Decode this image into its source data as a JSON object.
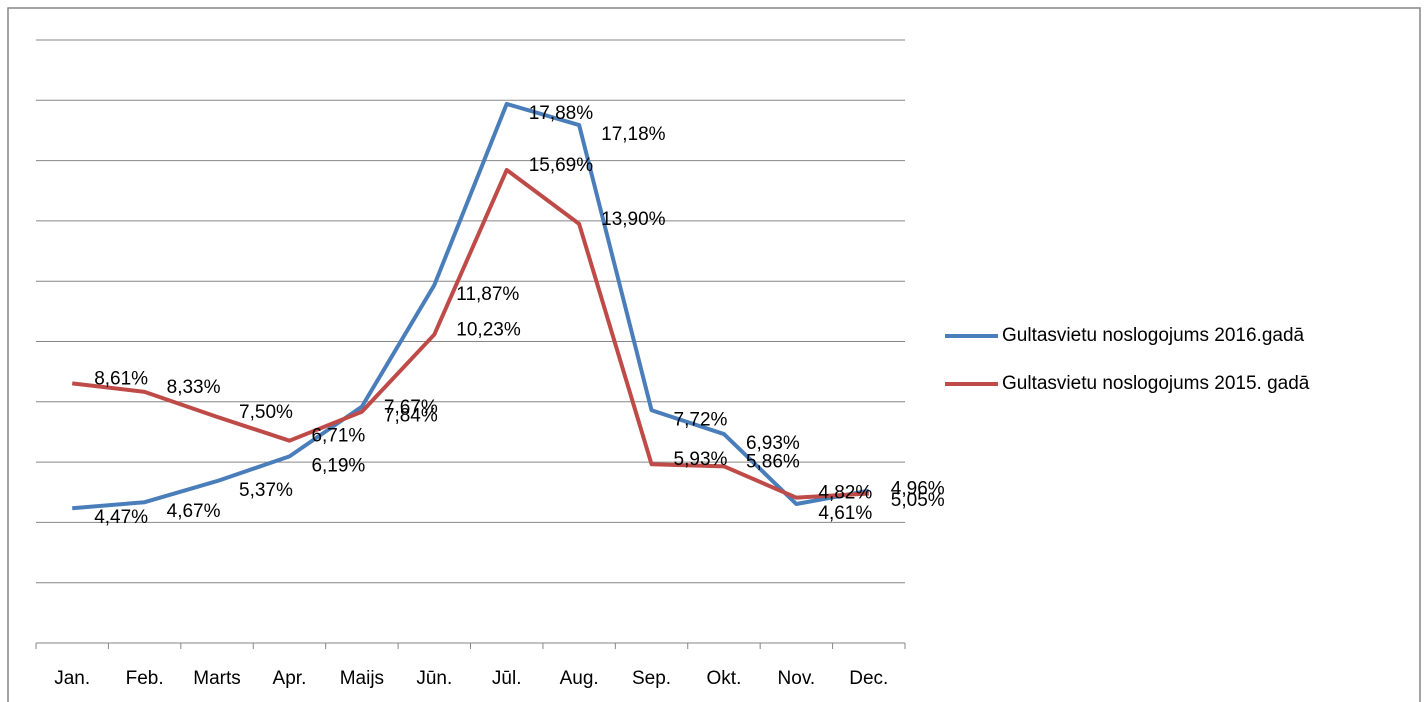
{
  "chart_data": {
    "type": "line",
    "categories": [
      "Jan.",
      "Feb.",
      "Marts",
      "Apr.",
      "Maijs",
      "Jūn.",
      "Jūl.",
      "Aug.",
      "Sep.",
      "Okt.",
      "Nov.",
      "Dec."
    ],
    "series": [
      {
        "name": "Gultasvietu noslogojums 2016.gadā",
        "color": "#4a7ebb",
        "values": [
          4.47,
          4.67,
          5.37,
          6.19,
          7.84,
          11.87,
          17.88,
          17.18,
          7.72,
          6.93,
          4.61,
          5.05
        ],
        "value_labels": [
          "4,47%",
          "4,67%",
          "5,37%",
          "6,19%",
          "7,84%",
          "11,87%",
          "17,88%",
          "17,18%",
          "7,72%",
          "6,93%",
          "4,61%",
          "5,05%"
        ]
      },
      {
        "name": "Gultasvietu noslogojums 2015. gadā",
        "color": "#be4b48",
        "values": [
          8.61,
          8.33,
          7.5,
          6.71,
          7.67,
          10.23,
          15.69,
          13.9,
          5.93,
          5.86,
          4.82,
          4.96
        ],
        "value_labels": [
          "8,61%",
          "8,33%",
          "7,50%",
          "6,71%",
          "7,67%",
          "10,23%",
          "15,69%",
          "13,90%",
          "5,93%",
          "5,86%",
          "4,82%",
          "4,96%"
        ]
      }
    ],
    "ylim": [
      0,
      20
    ],
    "yticks": [
      0,
      2,
      4,
      6,
      8,
      10,
      12,
      14,
      16,
      18,
      20
    ],
    "grid": true,
    "legend": "right"
  }
}
